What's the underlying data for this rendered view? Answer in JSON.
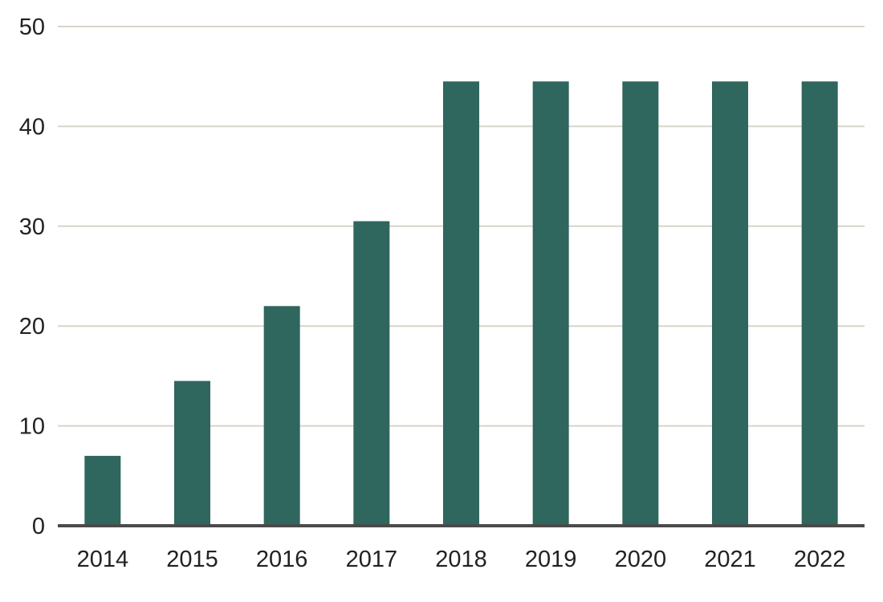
{
  "chart_data": {
    "type": "bar",
    "title": "",
    "xlabel": "",
    "ylabel": "",
    "categories": [
      "2014",
      "2015",
      "2016",
      "2017",
      "2018",
      "2019",
      "2020",
      "2021",
      "2022"
    ],
    "values": [
      7,
      14.5,
      22,
      30.5,
      44.5,
      44.5,
      44.5,
      44.5,
      44.5
    ],
    "ylim": [
      0,
      50
    ],
    "yticks": [
      "0",
      "10",
      "20",
      "30",
      "40",
      "50"
    ],
    "grid": true,
    "legend": "none",
    "bar_color": "#2f665d",
    "grid_color": "#d9d4c9",
    "axis_color": "#4a4a4a"
  }
}
